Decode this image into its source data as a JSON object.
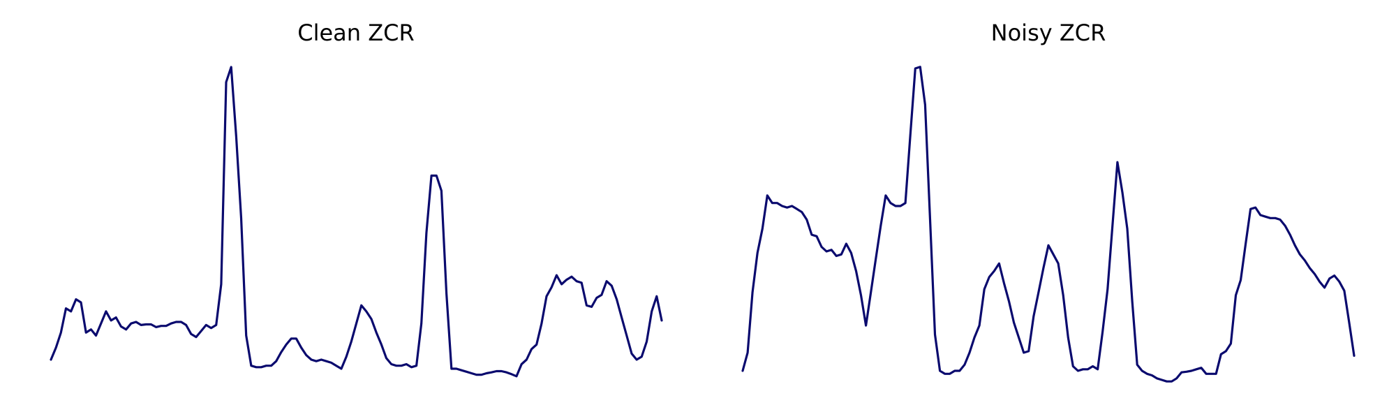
{
  "chart_data": [
    {
      "type": "line",
      "title": "Clean ZCR",
      "xlabel": "",
      "ylabel": "",
      "axes_visible": false,
      "grid": false,
      "ylim": [
        0,
        1
      ],
      "series": [
        {
          "color": "#0a0a6e",
          "values": [
            0.03,
            0.07,
            0.12,
            0.2,
            0.19,
            0.23,
            0.22,
            0.12,
            0.13,
            0.11,
            0.15,
            0.19,
            0.16,
            0.17,
            0.14,
            0.13,
            0.15,
            0.155,
            0.145,
            0.147,
            0.147,
            0.138,
            0.142,
            0.142,
            0.15,
            0.155,
            0.155,
            0.145,
            0.115,
            0.105,
            0.125,
            0.145,
            0.135,
            0.145,
            0.28,
            0.95,
            1.0,
            0.77,
            0.5,
            0.11,
            0.01,
            0.005,
            0.005,
            0.01,
            0.01,
            0.025,
            0.055,
            0.08,
            0.1,
            0.1,
            0.07,
            0.045,
            0.03,
            0.025,
            0.03,
            0.025,
            0.02,
            0.01,
            0.0,
            0.04,
            0.09,
            0.15,
            0.21,
            0.19,
            0.165,
            0.12,
            0.08,
            0.035,
            0.015,
            0.01,
            0.01,
            0.015,
            0.005,
            0.01,
            0.15,
            0.45,
            0.64,
            0.64,
            0.59,
            0.25,
            0.0,
            0.0,
            -0.005,
            -0.01,
            -0.015,
            -0.02,
            -0.02,
            -0.015,
            -0.012,
            -0.008,
            -0.008,
            -0.012,
            -0.018,
            -0.025,
            0.015,
            0.03,
            0.065,
            0.08,
            0.15,
            0.24,
            0.27,
            0.31,
            0.28,
            0.295,
            0.305,
            0.29,
            0.285,
            0.21,
            0.205,
            0.235,
            0.245,
            0.29,
            0.275,
            0.23,
            0.17,
            0.11,
            0.05,
            0.03,
            0.04,
            0.09,
            0.19,
            0.24,
            0.16
          ]
        }
      ]
    },
    {
      "type": "line",
      "title": "Noisy ZCR",
      "xlabel": "",
      "ylabel": "",
      "axes_visible": false,
      "grid": false,
      "ylim": [
        0,
        1
      ],
      "series": [
        {
          "color": "#0a0a6e",
          "values": [
            0.0,
            0.06,
            0.26,
            0.39,
            0.47,
            0.58,
            0.555,
            0.555,
            0.545,
            0.54,
            0.545,
            0.535,
            0.525,
            0.5,
            0.45,
            0.445,
            0.41,
            0.395,
            0.4,
            0.38,
            0.385,
            0.42,
            0.39,
            0.33,
            0.25,
            0.15,
            0.26,
            0.37,
            0.48,
            0.58,
            0.555,
            0.545,
            0.545,
            0.555,
            0.78,
            1.0,
            1.005,
            0.88,
            0.5,
            0.12,
            0.0,
            -0.01,
            -0.01,
            0.0,
            0.0,
            0.02,
            0.06,
            0.11,
            0.15,
            0.27,
            0.31,
            0.33,
            0.355,
            0.29,
            0.23,
            0.16,
            0.11,
            0.06,
            0.065,
            0.18,
            0.26,
            0.34,
            0.415,
            0.385,
            0.355,
            0.25,
            0.11,
            0.015,
            0.0,
            0.005,
            0.005,
            0.015,
            0.005,
            0.13,
            0.27,
            0.48,
            0.69,
            0.59,
            0.47,
            0.23,
            0.02,
            0.0,
            -0.01,
            -0.015,
            -0.025,
            -0.03,
            -0.035,
            -0.035,
            -0.025,
            -0.005,
            -0.003,
            0.0,
            0.005,
            0.01,
            -0.01,
            -0.01,
            -0.01,
            0.055,
            0.065,
            0.09,
            0.25,
            0.3,
            0.42,
            0.535,
            0.54,
            0.515,
            0.51,
            0.505,
            0.505,
            0.5,
            0.48,
            0.45,
            0.415,
            0.385,
            0.365,
            0.34,
            0.32,
            0.295,
            0.275,
            0.305,
            0.315,
            0.295,
            0.265,
            0.16,
            0.05
          ]
        }
      ]
    }
  ]
}
